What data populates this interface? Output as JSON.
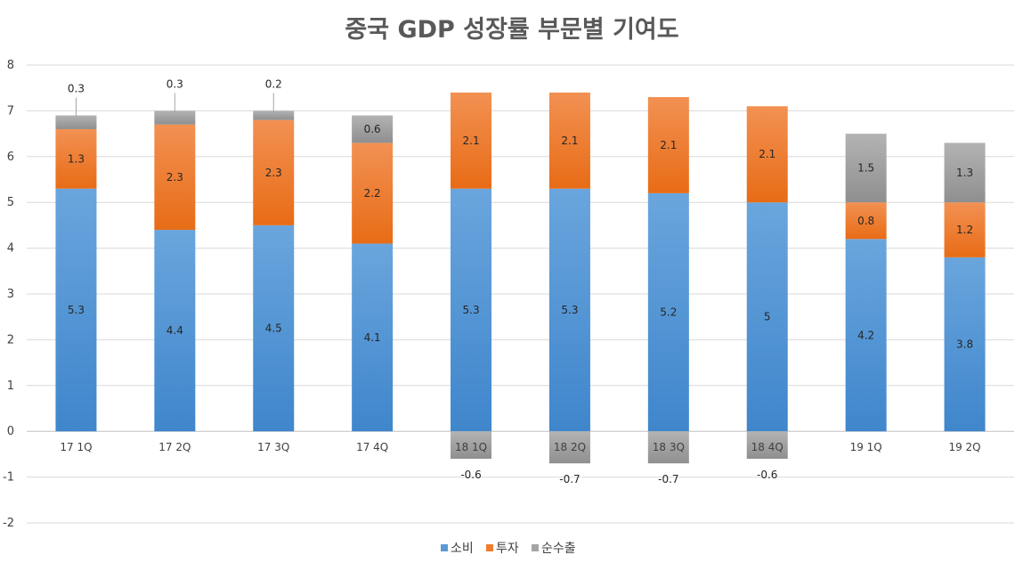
{
  "chart_data": {
    "type": "bar",
    "stacked": true,
    "title": "중국 GDP 성장률 부문별 기여도",
    "xlabel": "",
    "ylabel": "",
    "ylim": [
      -2,
      8
    ],
    "yticks": [
      8,
      7,
      6,
      5,
      4,
      3,
      2,
      1,
      0,
      -1,
      -2
    ],
    "grid": true,
    "legend_position": "bottom",
    "categories": [
      "17 1Q",
      "17 2Q",
      "17 3Q",
      "17 4Q",
      "18 1Q",
      "18 2Q",
      "18 3Q",
      "18 4Q",
      "19 1Q",
      "19 2Q"
    ],
    "series": [
      {
        "name": "소비",
        "color": "#5B9BD5",
        "values": [
          5.3,
          4.4,
          4.5,
          4.1,
          5.3,
          5.3,
          5.2,
          5,
          4.2,
          3.8
        ]
      },
      {
        "name": "투자",
        "color": "#ED7D31",
        "values": [
          1.3,
          2.3,
          2.3,
          2.2,
          2.1,
          2.1,
          2.1,
          2.1,
          0.8,
          1.2
        ]
      },
      {
        "name": "순수출",
        "color": "#A5A5A5",
        "values": [
          0.3,
          0.3,
          0.2,
          0.6,
          -0.6,
          -0.7,
          -0.7,
          -0.6,
          1.5,
          1.3
        ]
      }
    ]
  }
}
